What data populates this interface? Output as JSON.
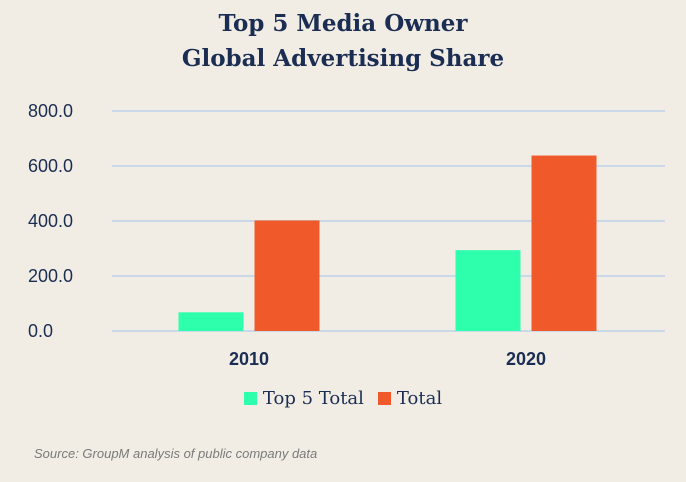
{
  "title_line1": "Top 5 Media Owner",
  "title_line2": "Global Advertising Share",
  "source": "Source: GroupM analysis of public company data",
  "colors": {
    "top5": "#2effad",
    "total": "#f05a2b",
    "grid": "#c9d9ea",
    "text": "#1b2d52"
  },
  "chart_data": {
    "type": "bar",
    "title": "Top 5 Media Owner Global Advertising Share",
    "categories": [
      "2010",
      "2020"
    ],
    "series": [
      {
        "name": "Top 5 Total",
        "values": [
          68,
          294
        ]
      },
      {
        "name": "Total",
        "values": [
          402,
          638
        ]
      }
    ],
    "yticks": [
      "800.0",
      "600.0",
      "400.0",
      "200.0",
      "0.0"
    ],
    "ylim": [
      0,
      800
    ],
    "grid": true,
    "legend_position": "bottom"
  }
}
